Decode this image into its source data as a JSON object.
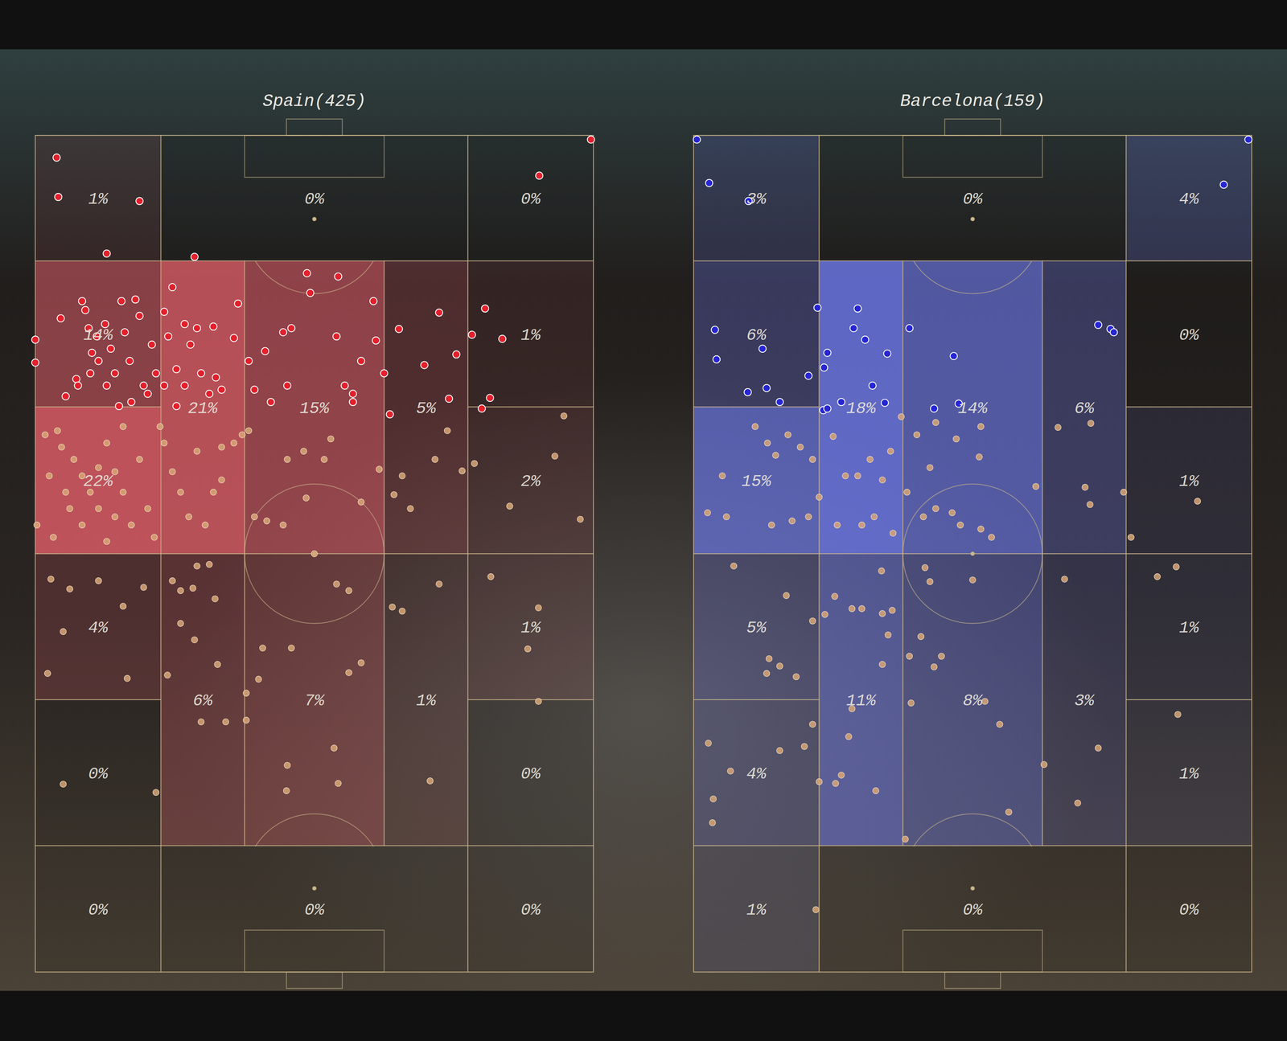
{
  "chart_data": [
    {
      "type": "heatmap",
      "title": "Spain(425)",
      "color": "#e8606c",
      "xlim": [
        0,
        680
      ],
      "ylim": [
        0,
        1020
      ],
      "tick_labels": false,
      "cells": {
        "zones": [
          [
            0,
            153,
            0,
            153
          ],
          [
            153,
            527,
            0,
            153
          ],
          [
            527,
            680,
            0,
            153
          ],
          [
            0,
            153,
            153,
            331
          ],
          [
            153,
            255,
            153,
            510
          ],
          [
            255,
            425,
            153,
            510
          ],
          [
            425,
            527,
            153,
            510
          ],
          [
            527,
            680,
            153,
            331
          ],
          [
            0,
            153,
            331,
            510
          ],
          [
            527,
            680,
            331,
            510
          ],
          [
            0,
            153,
            510,
            688
          ],
          [
            527,
            680,
            510,
            688
          ],
          [
            153,
            255,
            510,
            866
          ],
          [
            255,
            425,
            510,
            866
          ],
          [
            425,
            527,
            510,
            866
          ],
          [
            0,
            153,
            688,
            866
          ],
          [
            527,
            680,
            688,
            866
          ],
          [
            0,
            153,
            866,
            1020
          ],
          [
            153,
            527,
            866,
            1020
          ],
          [
            527,
            680,
            866,
            1020
          ]
        ],
        "values": [
          1,
          0,
          0,
          14,
          21,
          15,
          5,
          1,
          22,
          2,
          4,
          1,
          6,
          7,
          1,
          0,
          0,
          0,
          0,
          0
        ],
        "value_labels": [
          "1%",
          "0%",
          "0%",
          "14%",
          "21%",
          "15%",
          "5%",
          "1%",
          "22%",
          "2%",
          "4%",
          "1%",
          "6%",
          "7%",
          "1%",
          "0%",
          "0%",
          "0%",
          "0%",
          "0%"
        ]
      },
      "series": [
        {
          "color": "#e3202b",
          "marker": "circle",
          "x": [
            26,
            28,
            127,
            677,
            614,
            87,
            194,
            0,
            0,
            31,
            37,
            50,
            57,
            61,
            65,
            69,
            77,
            75,
            85,
            92,
            97,
            105,
            109,
            115,
            122,
            127,
            132,
            142,
            147,
            157,
            162,
            167,
            172,
            182,
            189,
            197,
            212,
            217,
            220,
            227,
            242,
            247,
            260,
            267,
            280,
            287,
            302,
            307,
            312,
            331,
            335,
            369,
            367,
            377,
            387,
            397,
            412,
            415,
            425,
            432,
            443,
            474,
            492,
            504,
            513,
            532,
            544,
            548,
            554,
            569,
            387,
            172,
            102,
            52,
            67,
            87,
            117,
            137,
            157,
            182,
            202
          ],
          "y": [
            27,
            75,
            80,
            5,
            49,
            144,
            148,
            249,
            277,
            223,
            318,
            297,
            202,
            213,
            235,
            265,
            275,
            245,
            230,
            260,
            290,
            202,
            240,
            275,
            200,
            220,
            305,
            255,
            290,
            215,
            245,
            185,
            285,
            230,
            255,
            235,
            315,
            233,
            295,
            310,
            247,
            205,
            275,
            310,
            263,
            325,
            240,
            305,
            235,
            168,
            192,
            172,
            245,
            305,
            315,
            275,
            202,
            250,
            290,
            340,
            236,
            280,
            216,
            321,
            267,
            243,
            333,
            211,
            320,
            248,
            325,
            330,
            330,
            305,
            290,
            305,
            325,
            315,
            305,
            305,
            290
          ]
        },
        {
          "color": "#d8a676",
          "marker": "circle",
          "x": [
            27,
            32,
            47,
            57,
            67,
            77,
            87,
            97,
            107,
            117,
            2,
            22,
            42,
            87,
            57,
            157,
            167,
            177,
            187,
            197,
            207,
            217,
            227,
            242,
            252,
            260,
            145,
            307,
            327,
            360,
            352,
            397,
            419,
            437,
            447,
            457,
            487,
            502,
            520,
            535,
            578,
            633,
            644,
            664,
            267,
            282,
            302,
            340,
            330,
            19,
            42,
            77,
            107,
            34,
            15,
            112,
            132,
            167,
            177,
            192,
            197,
            212,
            219,
            177,
            194,
            161,
            222,
            202,
            232,
            257,
            272,
            312,
            367,
            382,
            397,
            435,
            447,
            492,
            555,
            613,
            600,
            613,
            382,
            364,
            307,
            306,
            369,
            481,
            34,
            147,
            257,
            277,
            17,
            37,
            77,
            107,
            127,
            137,
            12,
            97,
            152,
            227
          ],
          "y": [
            360,
            380,
            395,
            415,
            435,
            455,
            375,
            410,
            435,
            475,
            475,
            490,
            455,
            495,
            475,
            375,
            410,
            435,
            465,
            385,
            475,
            435,
            420,
            375,
            365,
            360,
            490,
            395,
            385,
            370,
            395,
            447,
            407,
            438,
            415,
            455,
            395,
            360,
            409,
            400,
            452,
            391,
            342,
            468,
            465,
            470,
            475,
            510,
            442,
            541,
            553,
            543,
            574,
            605,
            656,
            662,
            551,
            543,
            555,
            552,
            525,
            523,
            565,
            595,
            615,
            658,
            645,
            715,
            715,
            680,
            663,
            625,
            547,
            555,
            643,
            575,
            580,
            547,
            538,
            576,
            626,
            690,
            655,
            747,
            768,
            799,
            790,
            787,
            791,
            801,
            713,
            625,
            415,
            435,
            405,
            355,
            395,
            455,
            365,
            465,
            355,
            380
          ]
        }
      ]
    },
    {
      "type": "heatmap",
      "title": "Barcelona(159)",
      "color": "#6f7cf2",
      "xlim": [
        0,
        680
      ],
      "ylim": [
        0,
        1020
      ],
      "tick_labels": false,
      "cells": {
        "zones": [
          [
            0,
            153,
            0,
            153
          ],
          [
            153,
            527,
            0,
            153
          ],
          [
            527,
            680,
            0,
            153
          ],
          [
            0,
            153,
            153,
            331
          ],
          [
            153,
            255,
            153,
            510
          ],
          [
            255,
            425,
            153,
            510
          ],
          [
            425,
            527,
            153,
            510
          ],
          [
            527,
            680,
            153,
            331
          ],
          [
            0,
            153,
            331,
            510
          ],
          [
            527,
            680,
            331,
            510
          ],
          [
            0,
            153,
            510,
            688
          ],
          [
            527,
            680,
            510,
            688
          ],
          [
            153,
            255,
            510,
            866
          ],
          [
            255,
            425,
            510,
            866
          ],
          [
            425,
            527,
            510,
            866
          ],
          [
            0,
            153,
            688,
            866
          ],
          [
            527,
            680,
            688,
            866
          ],
          [
            0,
            153,
            866,
            1020
          ],
          [
            153,
            527,
            866,
            1020
          ],
          [
            527,
            680,
            866,
            1020
          ]
        ],
        "values": [
          3,
          0,
          4,
          6,
          18,
          14,
          6,
          0,
          15,
          1,
          5,
          1,
          11,
          8,
          3,
          4,
          1,
          1,
          0,
          0
        ],
        "value_labels": [
          "3%",
          "0%",
          "4%",
          "6%",
          "18%",
          "14%",
          "6%",
          "0%",
          "15%",
          "1%",
          "5%",
          "1%",
          "11%",
          "8%",
          "3%",
          "4%",
          "1%",
          "1%",
          "0%",
          "0%"
        ]
      },
      "series": [
        {
          "color": "#2626d4",
          "marker": "circle",
          "x": [
            4,
            19,
            67,
            676,
            646,
            26,
            28,
            84,
            66,
            89,
            105,
            140,
            151,
            159,
            163,
            158,
            163,
            180,
            195,
            200,
            209,
            218,
            233,
            236,
            263,
            293,
            317,
            323,
            493,
            508,
            512
          ],
          "y": [
            5,
            58,
            80,
            5,
            60,
            237,
            273,
            260,
            313,
            308,
            325,
            293,
            210,
            283,
            265,
            335,
            333,
            325,
            235,
            211,
            249,
            305,
            326,
            266,
            235,
            333,
            269,
            327,
            231,
            236,
            240
          ]
        },
        {
          "color": "#d8a676",
          "marker": "circle",
          "x": [
            75,
            90,
            100,
            115,
            130,
            145,
            170,
            185,
            200,
            215,
            230,
            240,
            253,
            272,
            288,
            295,
            320,
            350,
            348,
            417,
            444,
            484,
            477,
            483,
            524,
            533,
            614,
            35,
            17,
            40,
            95,
            120,
            140,
            153,
            175,
            205,
            220,
            243,
            260,
            280,
            295,
            315,
            325,
            350,
            363,
            282,
            288,
            340,
            229,
            452,
            565,
            588,
            49,
            113,
            145,
            160,
            172,
            193,
            205,
            230,
            242,
            237,
            277,
            293,
            302,
            263,
            230,
            92,
            105,
            125,
            89,
            145,
            189,
            193,
            265,
            355,
            373,
            384,
            427,
            468,
            493,
            590,
            18,
            45,
            105,
            135,
            153,
            173,
            180,
            222,
            258,
            149,
            24,
            23
          ],
          "y": [
            355,
            375,
            390,
            365,
            380,
            395,
            367,
            415,
            415,
            395,
            420,
            385,
            343,
            365,
            405,
            350,
            370,
            355,
            392,
            428,
            356,
            351,
            429,
            450,
            435,
            490,
            446,
            415,
            460,
            465,
            475,
            470,
            465,
            441,
            475,
            475,
            465,
            485,
            435,
            465,
            455,
            460,
            475,
            480,
            490,
            527,
            544,
            542,
            531,
            541,
            538,
            526,
            525,
            561,
            592,
            584,
            562,
            577,
            577,
            583,
            579,
            609,
            611,
            648,
            635,
            635,
            645,
            638,
            647,
            660,
            656,
            718,
            733,
            699,
            692,
            690,
            718,
            825,
            767,
            814,
            747,
            706,
            741,
            775,
            750,
            745,
            788,
            790,
            780,
            799,
            858,
            944,
            809,
            838
          ]
        }
      ]
    }
  ]
}
